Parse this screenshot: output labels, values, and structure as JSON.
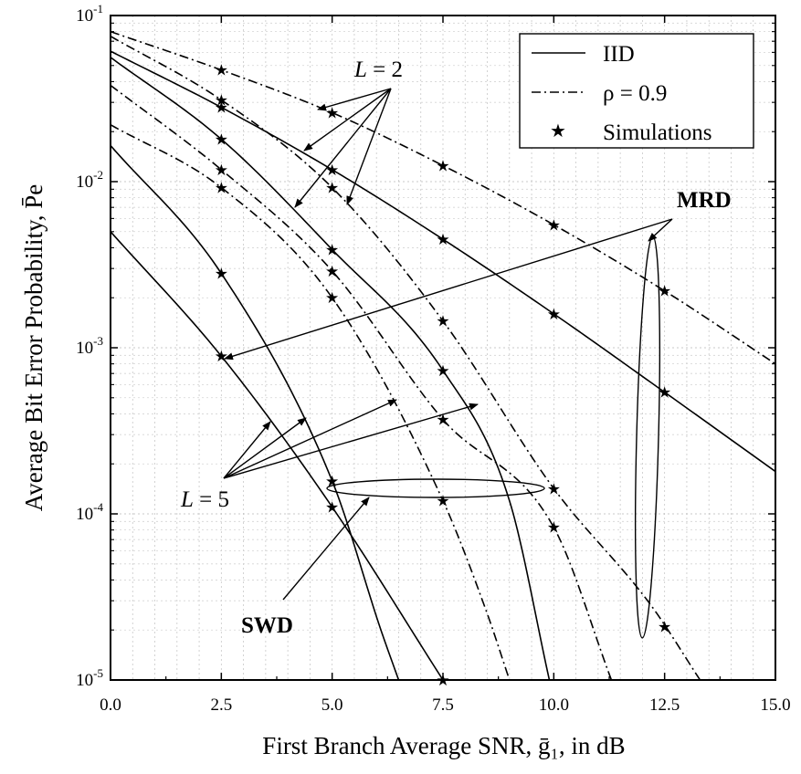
{
  "chart_data": {
    "type": "line",
    "title": "",
    "xlabel": "First Branch Average SNR, ḡ₁, in dB",
    "ylabel": "Average Bit Error Probability, P̄e",
    "xlim": [
      0,
      15
    ],
    "ylim": [
      1e-05,
      0.1
    ],
    "yscale": "log",
    "grid": true,
    "x_ticks": [
      "0.0",
      "2.5",
      "5.0",
      "7.5",
      "10.0",
      "12.5",
      "15.0"
    ],
    "x_tick_values": [
      0,
      2.5,
      5,
      7.5,
      10,
      12.5,
      15
    ],
    "y_tick_values": [
      1e-05,
      0.0001,
      0.001,
      0.01,
      0.1
    ],
    "y_tick_labels": [
      {
        "base": "10",
        "exp": "-5"
      },
      {
        "base": "10",
        "exp": "-4"
      },
      {
        "base": "10",
        "exp": "-3"
      },
      {
        "base": "10",
        "exp": "-2"
      },
      {
        "base": "10",
        "exp": "-1"
      }
    ],
    "legend": {
      "position": "top-right",
      "entries": [
        {
          "label": "IID",
          "style": "solid"
        },
        {
          "label": "ρ = 0.9",
          "style": "dashdot"
        },
        {
          "label": "Simulations",
          "style": "marker"
        }
      ]
    },
    "series": [
      {
        "style": "solid",
        "points": [
          [
            0,
            0.061
          ],
          [
            2.5,
            0.028
          ],
          [
            5,
            0.0118
          ],
          [
            7.5,
            0.0045
          ],
          [
            10,
            0.0016
          ],
          [
            12.5,
            0.00054
          ],
          [
            15,
            0.00018
          ]
        ]
      },
      {
        "style": "dashdot",
        "points": [
          [
            0,
            0.08
          ],
          [
            2.5,
            0.047
          ],
          [
            5,
            0.026
          ],
          [
            7.5,
            0.0125
          ],
          [
            10,
            0.0055
          ],
          [
            12.5,
            0.0022
          ],
          [
            15,
            0.0008
          ]
        ]
      },
      {
        "style": "solid",
        "points": [
          [
            0,
            0.056
          ],
          [
            2.5,
            0.018
          ],
          [
            5,
            0.0039
          ],
          [
            7.5,
            0.00073
          ],
          [
            9,
            0.00012
          ],
          [
            9.9,
            1e-05
          ]
        ]
      },
      {
        "style": "dashdot",
        "points": [
          [
            0,
            0.075
          ],
          [
            2.5,
            0.031
          ],
          [
            5,
            0.0092
          ],
          [
            7.5,
            0.00145
          ],
          [
            10,
            0.000142
          ],
          [
            12.2,
            2.8e-05
          ],
          [
            13.3,
            1e-05
          ]
        ]
      },
      {
        "style": "solid",
        "points": [
          [
            0,
            0.0165
          ],
          [
            2.5,
            0.0028
          ],
          [
            5,
            0.000158
          ],
          [
            6.1,
            2e-05
          ],
          [
            6.5,
            1e-05
          ]
        ]
      },
      {
        "style": "solid",
        "points": [
          [
            0,
            0.005
          ],
          [
            2.5,
            0.00089
          ],
          [
            5,
            0.00011
          ],
          [
            7.5,
            1e-05
          ]
        ]
      },
      {
        "style": "dashdot",
        "points": [
          [
            0,
            0.022
          ],
          [
            2.5,
            0.0092
          ],
          [
            5,
            0.002
          ],
          [
            7.5,
            0.00012
          ],
          [
            8.5,
            2.5e-05
          ],
          [
            9.0,
            1e-05
          ]
        ]
      },
      {
        "style": "dashdot",
        "points": [
          [
            0,
            0.038
          ],
          [
            2.5,
            0.0118
          ],
          [
            5,
            0.0029
          ],
          [
            7.5,
            0.00037
          ],
          [
            10,
            8.3e-05
          ],
          [
            11.3,
            1e-05
          ]
        ]
      }
    ],
    "simulations": [
      [
        2.5,
        0.047
      ],
      [
        2.5,
        0.031
      ],
      [
        2.5,
        0.028
      ],
      [
        2.5,
        0.018
      ],
      [
        2.5,
        0.0118
      ],
      [
        2.5,
        0.0092
      ],
      [
        2.5,
        0.0028
      ],
      [
        2.5,
        0.00089
      ],
      [
        5,
        0.026
      ],
      [
        5,
        0.0118
      ],
      [
        5,
        0.0092
      ],
      [
        5,
        0.0039
      ],
      [
        5,
        0.0029
      ],
      [
        5,
        0.002
      ],
      [
        5,
        0.000158
      ],
      [
        5,
        0.00011
      ],
      [
        7.5,
        0.0125
      ],
      [
        7.5,
        0.0045
      ],
      [
        7.5,
        0.00145
      ],
      [
        7.5,
        0.00073
      ],
      [
        7.5,
        0.00037
      ],
      [
        7.5,
        0.00012
      ],
      [
        7.5,
        1e-05
      ],
      [
        10,
        0.0055
      ],
      [
        10,
        0.0016
      ],
      [
        10,
        0.000142
      ],
      [
        10,
        8.3e-05
      ],
      [
        12.5,
        0.0022
      ],
      [
        12.5,
        0.00054
      ],
      [
        12.5,
        2.1e-05
      ]
    ],
    "annotations": {
      "L2": {
        "prefix": "L",
        "suffix": " = 2"
      },
      "L5": {
        "prefix": "L",
        "suffix": " = 5"
      },
      "mrd": "MRD",
      "swd": "SWD"
    }
  }
}
